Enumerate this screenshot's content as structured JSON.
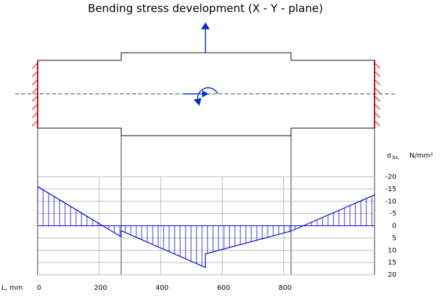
{
  "chart_data": {
    "type": "line",
    "title": "Bending stress development (X - Y - plane)",
    "x_label": "L, mm",
    "y_symbol": "σ",
    "y_symbol_sub": "bz,",
    "y_unit": "N/mm²",
    "x": [
      0,
      271,
      271,
      545,
      545,
      823,
      1095
    ],
    "values": [
      -16,
      4.5,
      2,
      17,
      11.5,
      2.2,
      -12.6
    ],
    "color": "#0000dd",
    "xlim": [
      0,
      1095
    ],
    "xticks": [
      0,
      200,
      400,
      600,
      800
    ],
    "ylim": [
      -20,
      20
    ],
    "yticks": [
      -20,
      -15,
      -10,
      -5,
      0,
      5,
      10,
      15,
      20
    ],
    "grid": true
  }
}
